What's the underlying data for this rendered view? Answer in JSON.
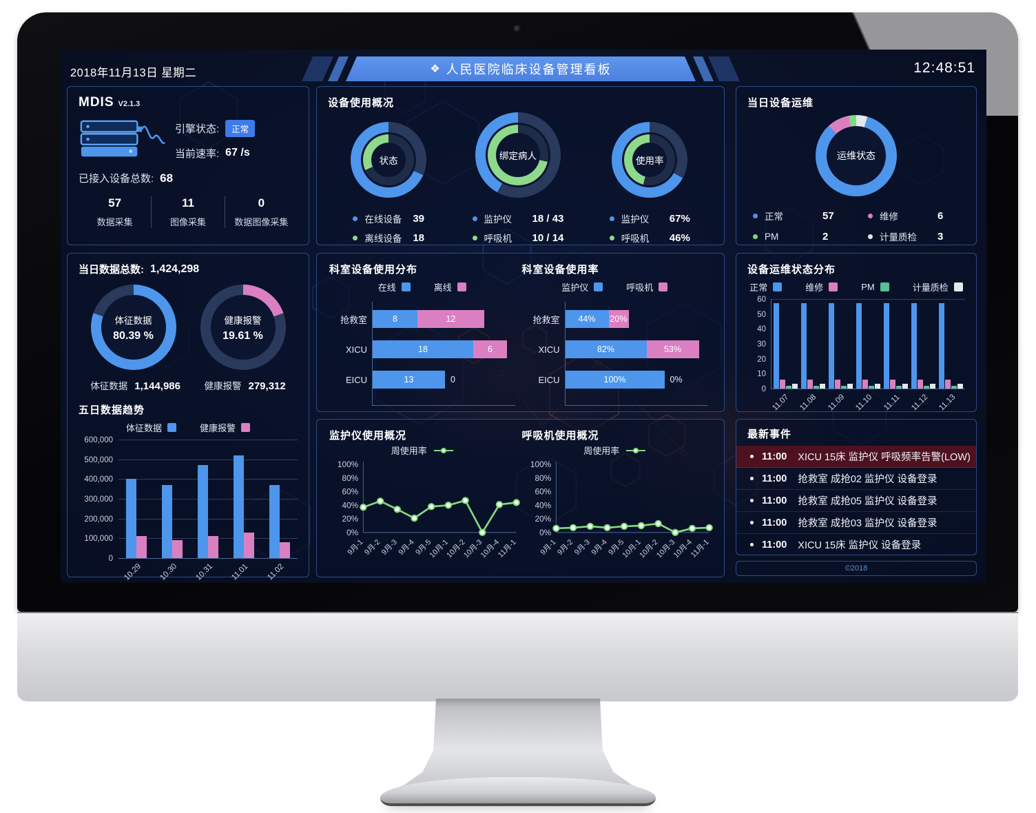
{
  "window": {
    "date": "2018年11月13日 星期二",
    "time": "12:48:51",
    "title": "人民医院临床设备管理看板",
    "title_icon": "❖",
    "footer": "©2018"
  },
  "colors": {
    "blue": "#4d96ec",
    "green": "#8fd98c",
    "pink": "#db7fc3",
    "teal": "#58c09b",
    "white_series": "#e4e7ec",
    "track_outer": "#2a3a5c",
    "track_inner": "#1f2c47",
    "line_green": "#86d97e"
  },
  "mdis": {
    "title": "MDIS",
    "version": "V2.1.3",
    "engine_label": "引擎状态:",
    "engine_status": "正常",
    "rate_label": "当前速率:",
    "rate_value": "67 /s",
    "total_label": "已接入设备总数:",
    "total_value": "68",
    "stats": [
      {
        "value": "57",
        "label": "数据采集"
      },
      {
        "value": "11",
        "label": "图像采集"
      },
      {
        "value": "0",
        "label": "数据图像采集"
      }
    ]
  },
  "device_usage": {
    "title": "设备使用概况",
    "donuts": [
      {
        "center": "状态",
        "outer_pct": 68.4,
        "inner_pct": 31.6,
        "legend": [
          {
            "color": "blue",
            "label": "在线设备",
            "value": "39"
          },
          {
            "color": "green",
            "label": "离线设备",
            "value": "18"
          }
        ]
      },
      {
        "center": "绑定病人",
        "outer_pct": 41.9,
        "inner_pct": 71.4,
        "legend": [
          {
            "color": "blue",
            "label": "监护仪",
            "value": "18 / 43"
          },
          {
            "color": "green",
            "label": "呼吸机",
            "value": "10 / 14"
          }
        ]
      },
      {
        "center": "使用率",
        "outer_pct": 67,
        "inner_pct": 46,
        "legend": [
          {
            "color": "blue",
            "label": "监护仪",
            "value": "67%"
          },
          {
            "color": "green",
            "label": "呼吸机",
            "value": "46%"
          }
        ]
      }
    ]
  },
  "maintenance_today": {
    "title": "当日设备运维",
    "center": "运维状态",
    "segments": [
      {
        "name": "计量质检",
        "value": 3,
        "color": "#e4e7ec"
      },
      {
        "name": "正常",
        "value": 57,
        "color": "#4d96ec"
      },
      {
        "name": "维修",
        "value": 6,
        "color": "#db7fc3"
      },
      {
        "name": "PM",
        "value": 2,
        "color": "#7cdb85"
      }
    ],
    "legend": [
      {
        "label": "正常",
        "value": "57",
        "color": "blue"
      },
      {
        "label": "维修",
        "value": "6",
        "color": "pink"
      },
      {
        "label": "PM",
        "value": "2",
        "color": "#7cdb85"
      },
      {
        "label": "计量质检",
        "value": "3",
        "color": "white_series"
      }
    ]
  },
  "data_today": {
    "total_label": "当日数据总数:",
    "total_value": "1,424,298",
    "donuts": [
      {
        "label": "体征数据",
        "pct": "80.39 %",
        "value": 80.39,
        "color": "blue"
      },
      {
        "label": "健康报警",
        "pct": "19.61 %",
        "value": 19.61,
        "color": "pink"
      }
    ],
    "stats": [
      {
        "label": "体征数据",
        "value": "1,144,986"
      },
      {
        "label": "健康报警",
        "value": "279,312"
      }
    ]
  },
  "five_day_trend": {
    "title": "五日数据趋势",
    "type": "bar",
    "legend": [
      {
        "label": "体征数据",
        "color": "blue"
      },
      {
        "label": "健康报警",
        "color": "pink"
      }
    ],
    "categories": [
      "10.29",
      "10.30",
      "10.31",
      "11.01",
      "11.02"
    ],
    "series": [
      {
        "name": "体征数据",
        "color": "blue",
        "values": [
          400000,
          370000,
          470000,
          520000,
          370000
        ]
      },
      {
        "name": "健康报警",
        "color": "pink",
        "values": [
          110000,
          90000,
          110000,
          130000,
          80000
        ]
      }
    ],
    "ymax": 600000,
    "grid": "all",
    "yticks": [
      {
        "v": 0,
        "label": "0"
      },
      {
        "v": 100000,
        "label": "100,000"
      },
      {
        "v": 200000,
        "label": "200,000"
      },
      {
        "v": 300000,
        "label": "300,000"
      },
      {
        "v": 400000,
        "label": "400,000"
      },
      {
        "v": 500000,
        "label": "500,000"
      },
      {
        "v": 600000,
        "label": "600,000"
      }
    ]
  },
  "dept_distribution": {
    "title": "科室设备使用分布",
    "type": "stacked-horizontal-bar",
    "legend": [
      {
        "label": "在线",
        "color": "blue"
      },
      {
        "label": "离线",
        "color": "pink"
      }
    ],
    "colors": [
      "blue",
      "pink"
    ],
    "suffix": "",
    "rows": [
      {
        "label": "抢救室",
        "values": [
          8,
          12
        ]
      },
      {
        "label": "XICU",
        "values": [
          18,
          6
        ]
      },
      {
        "label": "EICU",
        "values": [
          13,
          0
        ]
      }
    ]
  },
  "dept_usage_rate": {
    "title": "科室设备使用率",
    "type": "stacked-horizontal-bar",
    "legend": [
      {
        "label": "监护仪",
        "color": "blue"
      },
      {
        "label": "呼吸机",
        "color": "pink"
      }
    ],
    "colors": [
      "blue",
      "pink"
    ],
    "suffix": "%",
    "rows": [
      {
        "label": "抢救室",
        "values": [
          44,
          20
        ]
      },
      {
        "label": "XICU",
        "values": [
          82,
          53
        ]
      },
      {
        "label": "EICU",
        "values": [
          100,
          0
        ]
      }
    ]
  },
  "maintenance_distribution": {
    "title": "设备运维状态分布",
    "type": "bar",
    "legend": [
      {
        "label": "正常",
        "color": "blue"
      },
      {
        "label": "维修",
        "color": "pink"
      },
      {
        "label": "PM",
        "color": "teal"
      },
      {
        "label": "计量质检",
        "color": "white_series"
      }
    ],
    "categories": [
      "11.07",
      "11.08",
      "11.09",
      "11.10",
      "11.11",
      "11.12",
      "11.13"
    ],
    "series": [
      {
        "name": "正常",
        "color": "blue",
        "values": [
          57,
          57,
          57,
          57,
          57,
          57,
          57
        ]
      },
      {
        "name": "维修",
        "color": "pink",
        "values": [
          6,
          6,
          6,
          6,
          6,
          6,
          6
        ]
      },
      {
        "name": "PM",
        "color": "teal",
        "values": [
          2,
          2,
          2,
          2,
          2,
          2,
          2
        ]
      },
      {
        "name": "计量质检",
        "color": "white_series",
        "values": [
          3,
          3,
          3,
          3,
          3,
          3,
          3
        ]
      }
    ],
    "ymax": 60,
    "grid": "top",
    "yticks": [
      {
        "v": 0,
        "label": "0"
      },
      {
        "v": 10,
        "label": "10"
      },
      {
        "v": 20,
        "label": "20"
      },
      {
        "v": 30,
        "label": "30"
      },
      {
        "v": 40,
        "label": "40"
      },
      {
        "v": 50,
        "label": "50"
      },
      {
        "v": 60,
        "label": "60"
      }
    ]
  },
  "monitor_usage": {
    "title": "监护仪使用概况",
    "type": "line",
    "legend_label": "周使用率",
    "x": [
      "9月-1",
      "9月-2",
      "9月-3",
      "9月-4",
      "9月-5",
      "10月-1",
      "10月-2",
      "10月-3",
      "10月-4",
      "11月-1"
    ],
    "values": [
      37,
      46,
      34,
      21,
      38,
      40,
      47,
      0,
      41,
      44
    ]
  },
  "ventilator_usage": {
    "title": "呼吸机使用概况",
    "type": "line",
    "legend_label": "周使用率",
    "x": [
      "9月-1",
      "9月-2",
      "9月-3",
      "9月-4",
      "9月-5",
      "10月-1",
      "10月-2",
      "10月-3",
      "10月-4",
      "11月-1"
    ],
    "values": [
      6,
      7,
      9,
      7,
      9,
      10,
      13,
      0,
      6,
      7
    ]
  },
  "events": {
    "title": "最新事件",
    "rows": [
      {
        "time": "11:00",
        "text": "XICU 15床 监护仪 呼吸频率告警(LOW)",
        "alert": true
      },
      {
        "time": "11:00",
        "text": "抢救室 成抢02 监护仪 设备登录",
        "alert": false
      },
      {
        "time": "11:00",
        "text": "抢救室 成抢05 监护仪 设备登录",
        "alert": false
      },
      {
        "time": "11:00",
        "text": "抢救室 成抢03 监护仪 设备登录",
        "alert": false
      },
      {
        "time": "11:00",
        "text": "XICU 15床 监护仪 设备登录",
        "alert": false
      }
    ]
  }
}
